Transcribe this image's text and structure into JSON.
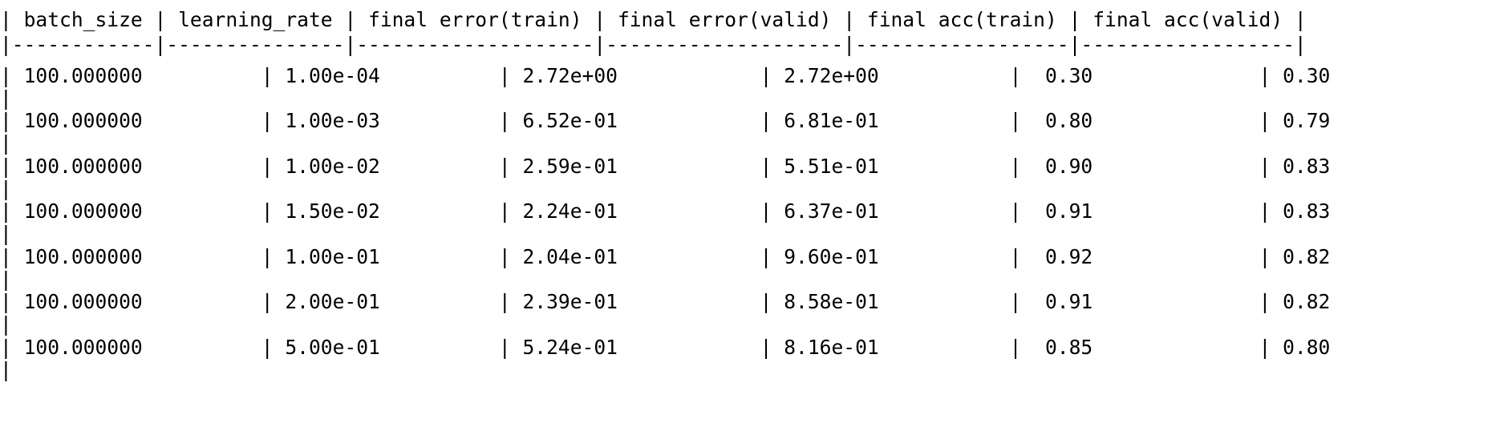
{
  "document": {
    "header": "| batch_size | learning_rate | final error(train) | final error(valid) | final acc(train) | final acc(valid) |",
    "separator": "|------------|---------------|--------------------|--------------------|------------------|------------------|",
    "rows": [
      {
        "text": "| 100.000000          | 1.00e-04          | 2.72e+00            | 2.72e+00           |  0.30              | 0.30",
        "pipe": "|"
      },
      {
        "text": "| 100.000000          | 1.00e-03          | 6.52e-01            | 6.81e-01           |  0.80              | 0.79",
        "pipe": "|"
      },
      {
        "text": "| 100.000000          | 1.00e-02          | 2.59e-01            | 5.51e-01           |  0.90              | 0.83",
        "pipe": "|"
      },
      {
        "text": "| 100.000000          | 1.50e-02          | 2.24e-01            | 6.37e-01           |  0.91              | 0.83",
        "pipe": "|"
      },
      {
        "text": "| 100.000000          | 1.00e-01          | 2.04e-01            | 9.60e-01           |  0.92              | 0.82",
        "pipe": "|"
      },
      {
        "text": "| 100.000000          | 2.00e-01          | 2.39e-01            | 8.58e-01           |  0.91              | 0.82",
        "pipe": "|"
      },
      {
        "text": "| 100.000000          | 5.00e-01          | 5.24e-01            | 8.16e-01           |  0.85              | 0.80",
        "pipe": "|"
      }
    ]
  }
}
